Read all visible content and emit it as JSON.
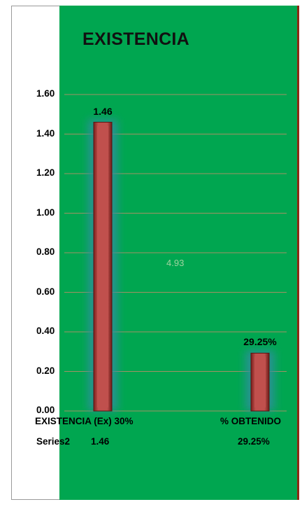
{
  "colors": {
    "plot_background": "#00a650",
    "bar_fill": "#c0504d",
    "bar_glow": "#2f8f9f",
    "gridline": "#d98a6a",
    "right_border": "#8b2a14"
  },
  "chart_data": {
    "type": "bar",
    "title": "EXISTENCIA",
    "categories": [
      "EXISTENCIA (Ex) 30%",
      "% OBTENIDO"
    ],
    "series": [
      {
        "name": "Series2",
        "values": [
          1.46,
          0.2925
        ],
        "data_labels": [
          "1.46",
          "29.25%"
        ]
      }
    ],
    "ylim": [
      0,
      1.6
    ],
    "yticks": [
      "0.00",
      "0.20",
      "0.40",
      "0.60",
      "0.80",
      "1.00",
      "1.20",
      "1.40",
      "1.60"
    ],
    "grid": true,
    "annotations": [
      "4.93"
    ],
    "data_table": {
      "row_label": "Series2",
      "cells": [
        "1.46",
        "29.25%"
      ]
    }
  }
}
